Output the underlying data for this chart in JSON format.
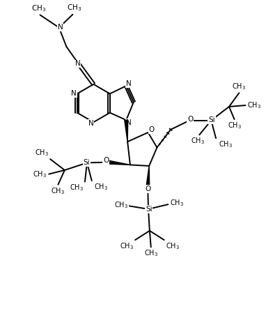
{
  "bg_color": "#ffffff",
  "line_color": "#000000",
  "line_width": 1.4,
  "font_size": 7.5,
  "figsize": [
    3.82,
    4.46
  ],
  "dpi": 100,
  "xlim": [
    0,
    10
  ],
  "ylim": [
    0,
    11.67
  ]
}
